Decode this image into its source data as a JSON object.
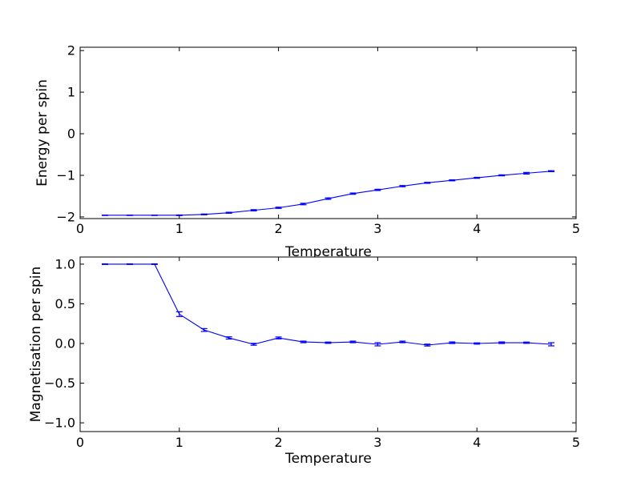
{
  "figure": {
    "background": "#ffffff",
    "line_color": "#0000ff",
    "axis_color": "#000000"
  },
  "chart_data": [
    {
      "type": "line",
      "title": "",
      "xlabel": "Temperature",
      "ylabel": "Energy per spin",
      "xlim": [
        0,
        5
      ],
      "ylim": [
        -2.04,
        2.08
      ],
      "xticks": [
        0,
        1,
        2,
        3,
        4,
        5
      ],
      "xtick_labels": [
        "0",
        "1",
        "2",
        "3",
        "4",
        "5"
      ],
      "yticks": [
        2,
        1,
        0,
        -1,
        -2
      ],
      "ytick_labels": [
        "2",
        "1",
        "0",
        "−1",
        "−2"
      ],
      "grid": false,
      "legend": null,
      "error_bars": true,
      "x": [
        0.25,
        0.5,
        0.75,
        1.0,
        1.25,
        1.5,
        1.75,
        2.0,
        2.25,
        2.5,
        2.75,
        3.0,
        3.25,
        3.5,
        3.75,
        4.0,
        4.25,
        4.5,
        4.75
      ],
      "y": [
        -1.96,
        -1.96,
        -1.96,
        -1.96,
        -1.94,
        -1.9,
        -1.84,
        -1.78,
        -1.69,
        -1.56,
        -1.44,
        -1.35,
        -1.26,
        -1.18,
        -1.12,
        -1.06,
        -1.0,
        -0.95,
        -0.9
      ],
      "yerr": [
        0.005,
        0.005,
        0.005,
        0.008,
        0.01,
        0.012,
        0.015,
        0.015,
        0.018,
        0.018,
        0.015,
        0.015,
        0.015,
        0.012,
        0.012,
        0.012,
        0.012,
        0.02,
        0.012
      ]
    },
    {
      "type": "line",
      "title": "",
      "xlabel": "Temperature",
      "ylabel": "Magnetisation per spin",
      "xlim": [
        0,
        5
      ],
      "ylim": [
        -1.11,
        1.09
      ],
      "xticks": [
        0,
        1,
        2,
        3,
        4,
        5
      ],
      "xtick_labels": [
        "0",
        "1",
        "2",
        "3",
        "4",
        "5"
      ],
      "yticks": [
        1.0,
        0.5,
        0.0,
        -0.5,
        -1.0
      ],
      "ytick_labels": [
        "1.0",
        "0.5",
        "0.0",
        "−0.5",
        "−1.0"
      ],
      "grid": false,
      "legend": null,
      "error_bars": true,
      "x": [
        0.25,
        0.5,
        0.75,
        1.0,
        1.25,
        1.5,
        1.75,
        2.0,
        2.25,
        2.5,
        2.75,
        3.0,
        3.25,
        3.5,
        3.75,
        4.0,
        4.25,
        4.5,
        4.75
      ],
      "y": [
        1.0,
        1.0,
        1.0,
        0.37,
        0.17,
        0.07,
        -0.01,
        0.07,
        0.02,
        0.01,
        0.02,
        -0.01,
        0.02,
        -0.02,
        0.01,
        0.0,
        0.01,
        0.01,
        -0.01
      ],
      "yerr": [
        0.004,
        0.004,
        0.004,
        0.03,
        0.018,
        0.014,
        0.012,
        0.012,
        0.01,
        0.008,
        0.01,
        0.02,
        0.01,
        0.012,
        0.01,
        0.008,
        0.01,
        0.008,
        0.02
      ]
    }
  ]
}
